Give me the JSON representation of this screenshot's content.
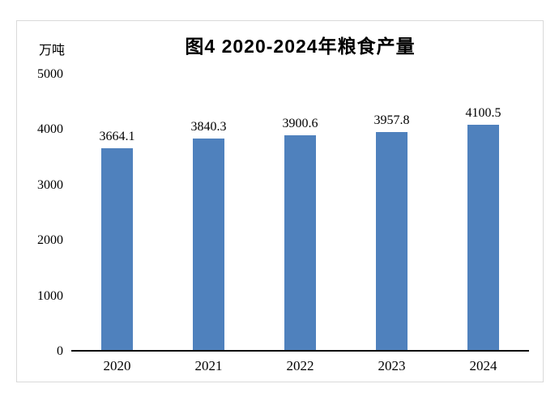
{
  "chart_data": {
    "type": "bar",
    "title": "图4 2020-2024年粮食产量",
    "unit_label": "万吨",
    "categories": [
      "2020",
      "2021",
      "2022",
      "2023",
      "2024"
    ],
    "values": [
      3664.1,
      3840.3,
      3900.6,
      3957.8,
      4100.5
    ],
    "data_labels": [
      "3664.1",
      "3840.3",
      "3900.6",
      "3957.8",
      "4100.5"
    ],
    "ylim": [
      0,
      5000
    ],
    "yticks": [
      0,
      1000,
      2000,
      3000,
      4000,
      5000
    ],
    "bar_color": "#4F81BD",
    "frame_border_color": "#d9d9d9",
    "axis_line_color": "#000000",
    "grid": false,
    "legend": "none"
  }
}
